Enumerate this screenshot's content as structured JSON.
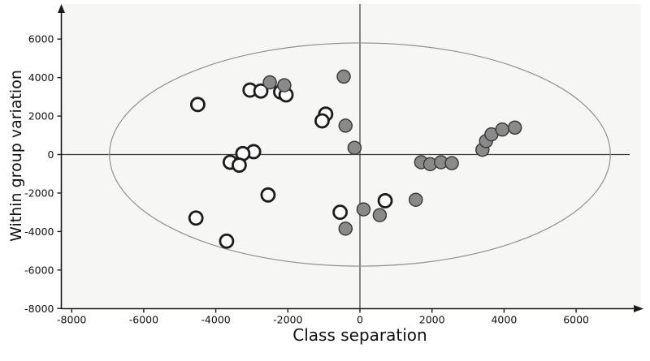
{
  "chart_data": {
    "type": "scatter",
    "title": "",
    "xlabel": "Class separation",
    "ylabel": "Within group variation",
    "xlim": [
      -8000,
      7800
    ],
    "ylim": [
      -8300,
      7600
    ],
    "x_ticks": [
      -8000,
      -6000,
      -4000,
      -2000,
      0,
      2000,
      4000,
      6000
    ],
    "y_ticks": [
      -8000,
      -6000,
      -4000,
      -2000,
      0,
      2000,
      4000,
      6000
    ],
    "grid": false,
    "legend": "none",
    "axes_cross_at_zero": true,
    "ellipse": {
      "cx": 0,
      "cy": 0,
      "rx": 6950,
      "ry": 5800
    },
    "colors": {
      "plot_bg": "#f6f6f5",
      "axis": "#1a1a1a",
      "zero_line": "#3a3a3a",
      "ellipse_stroke": "#8f8f8f",
      "open_fill": "#fdfdfd",
      "open_stroke": "#1c1c1c",
      "filled_fill": "#8a8a8a",
      "filled_stroke": "#3c3c3c"
    },
    "series": [
      {
        "name": "class-1-open-circles",
        "marker": "open-circle",
        "points": [
          [
            -4500,
            2600
          ],
          [
            -3050,
            3350
          ],
          [
            -2750,
            3300
          ],
          [
            -2200,
            3250
          ],
          [
            -2050,
            3100
          ],
          [
            -950,
            2100
          ],
          [
            -1050,
            1750
          ],
          [
            -2950,
            150
          ],
          [
            -3250,
            50
          ],
          [
            -3600,
            -400
          ],
          [
            -3350,
            -550
          ],
          [
            -2550,
            -2100
          ],
          [
            -4550,
            -3300
          ],
          [
            -3700,
            -4500
          ],
          [
            -550,
            -3000
          ],
          [
            700,
            -2400
          ]
        ]
      },
      {
        "name": "class-2-filled-circles",
        "marker": "filled-circle",
        "points": [
          [
            -2500,
            3750
          ],
          [
            -2100,
            3600
          ],
          [
            -450,
            4050
          ],
          [
            -400,
            1500
          ],
          [
            -150,
            350
          ],
          [
            1700,
            -400
          ],
          [
            1950,
            -500
          ],
          [
            2250,
            -400
          ],
          [
            2550,
            -450
          ],
          [
            3400,
            250
          ],
          [
            3500,
            700
          ],
          [
            3650,
            1050
          ],
          [
            3950,
            1300
          ],
          [
            4300,
            1400
          ],
          [
            1550,
            -2350
          ],
          [
            100,
            -2850
          ],
          [
            550,
            -3150
          ],
          [
            -400,
            -3850
          ]
        ]
      }
    ]
  }
}
